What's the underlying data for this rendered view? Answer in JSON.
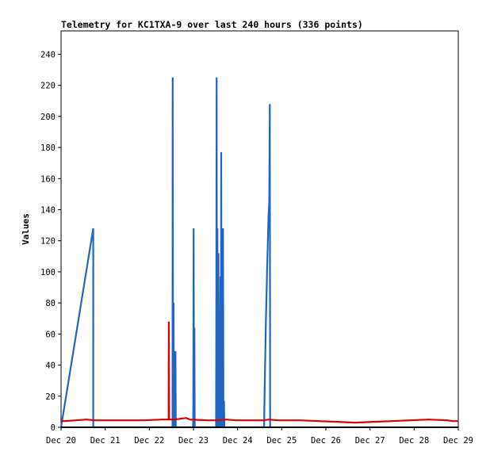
{
  "chart_data": {
    "type": "line",
    "title": "Telemetry for KC1TXA-9 over last 240 hours (336 points)",
    "xlabel": "",
    "ylabel": "Values",
    "x_ticks": [
      "Dec 20",
      "Dec 21",
      "Dec 22",
      "Dec 23",
      "Dec 24",
      "Dec 25",
      "Dec 26",
      "Dec 27",
      "Dec 28",
      "Dec 29"
    ],
    "xlim_hours": [
      0,
      216
    ],
    "ylim": [
      0,
      255
    ],
    "y_ticks": [
      0,
      20,
      40,
      60,
      80,
      100,
      120,
      140,
      160,
      180,
      200,
      220,
      240
    ],
    "grid": false,
    "series": [
      {
        "color": "#1f66c2",
        "points": [
          [
            0.0,
            0
          ],
          [
            17.5,
            128
          ],
          [
            17.5,
            0
          ],
          [
            58.6,
            0
          ],
          [
            58.7,
            0
          ],
          [
            58.9,
            0
          ],
          [
            60.6,
            0
          ],
          [
            60.7,
            225
          ],
          [
            60.9,
            0
          ],
          [
            61.2,
            80
          ],
          [
            61.4,
            0
          ],
          [
            62.1,
            0
          ],
          [
            62.2,
            49
          ],
          [
            62.4,
            0
          ],
          [
            71.8,
            0
          ],
          [
            71.9,
            15
          ],
          [
            72.1,
            128
          ],
          [
            72.3,
            0
          ],
          [
            72.5,
            64
          ],
          [
            72.7,
            0
          ],
          [
            84.3,
            0
          ],
          [
            84.4,
            64
          ],
          [
            84.6,
            225
          ],
          [
            84.8,
            0
          ],
          [
            85.0,
            128
          ],
          [
            85.2,
            0
          ],
          [
            85.6,
            112
          ],
          [
            85.8,
            0
          ],
          [
            86.1,
            65
          ],
          [
            86.3,
            0
          ],
          [
            86.7,
            97
          ],
          [
            86.9,
            0
          ],
          [
            87.1,
            177
          ],
          [
            87.3,
            0
          ],
          [
            87.5,
            128
          ],
          [
            87.7,
            0
          ],
          [
            88.1,
            128
          ],
          [
            88.3,
            0
          ],
          [
            88.6,
            17
          ],
          [
            88.8,
            0
          ],
          [
            110.4,
            0
          ],
          [
            110.6,
            15
          ],
          [
            111.3,
            64
          ],
          [
            112.0,
            100
          ],
          [
            112.4,
            117
          ],
          [
            112.8,
            135
          ],
          [
            113.2,
            145
          ],
          [
            113.5,
            208
          ],
          [
            113.7,
            0
          ],
          [
            114.0,
            0
          ]
        ]
      },
      {
        "color": "#dd0000",
        "points": [
          [
            0,
            4
          ],
          [
            2,
            4
          ],
          [
            8,
            4.5
          ],
          [
            14,
            5
          ],
          [
            18,
            4.5
          ],
          [
            25,
            4.5
          ],
          [
            35,
            4.5
          ],
          [
            45,
            4.5
          ],
          [
            55,
            5
          ],
          [
            58.5,
            5
          ],
          [
            58.6,
            68
          ],
          [
            58.8,
            5
          ],
          [
            62,
            5
          ],
          [
            65,
            5.5
          ],
          [
            68,
            6
          ],
          [
            70,
            5
          ],
          [
            80,
            4.5
          ],
          [
            85,
            4.5
          ],
          [
            90,
            5
          ],
          [
            95,
            4.5
          ],
          [
            100,
            4.5
          ],
          [
            105,
            4.5
          ],
          [
            110,
            4.5
          ],
          [
            113,
            5
          ],
          [
            118,
            4.5
          ],
          [
            130,
            4.5
          ],
          [
            140,
            4
          ],
          [
            150,
            3.5
          ],
          [
            160,
            3
          ],
          [
            170,
            3.5
          ],
          [
            180,
            4
          ],
          [
            190,
            4.5
          ],
          [
            200,
            5
          ],
          [
            210,
            4.5
          ],
          [
            213,
            4
          ],
          [
            216,
            4
          ]
        ]
      },
      {
        "color": "#000000",
        "points": [
          [
            0,
            0
          ],
          [
            216,
            0
          ]
        ]
      }
    ]
  }
}
